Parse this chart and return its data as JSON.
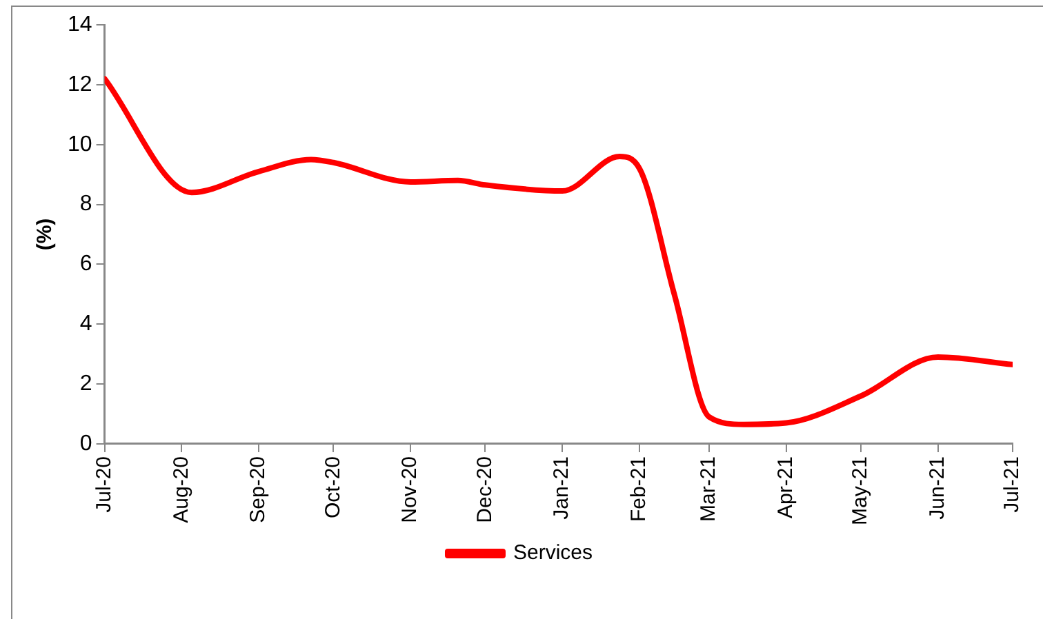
{
  "chart_data": {
    "type": "line",
    "ylabel": "(%)",
    "x": [
      "2020-07-01",
      "2020-08-05",
      "2020-09-01",
      "2020-09-22",
      "2020-10-01",
      "2020-11-01",
      "2020-11-20",
      "2020-12-01",
      "2021-01-01",
      "2021-01-24",
      "2021-02-01",
      "2021-02-15",
      "2021-03-01",
      "2021-03-15",
      "2021-04-01",
      "2021-05-01",
      "2021-06-01",
      "2021-07-01"
    ],
    "series": [
      {
        "name": "Services",
        "color": "#ff0000",
        "values": [
          12.2,
          8.4,
          9.1,
          9.5,
          9.4,
          8.75,
          8.8,
          8.65,
          8.45,
          9.6,
          9.2,
          5.0,
          0.9,
          0.65,
          0.7,
          1.6,
          2.9,
          2.65
        ]
      }
    ],
    "xlim": [
      "2020-07-01",
      "2021-07-01"
    ],
    "xticks": [
      {
        "value": "2020-07-01",
        "label": "Jul-20"
      },
      {
        "value": "2020-08-01",
        "label": "Aug-20"
      },
      {
        "value": "2020-09-01",
        "label": "Sep-20"
      },
      {
        "value": "2020-10-01",
        "label": "Oct-20"
      },
      {
        "value": "2020-11-01",
        "label": "Nov-20"
      },
      {
        "value": "2020-12-01",
        "label": "Dec-20"
      },
      {
        "value": "2021-01-01",
        "label": "Jan-21"
      },
      {
        "value": "2021-02-01",
        "label": "Feb-21"
      },
      {
        "value": "2021-03-01",
        "label": "Mar-21"
      },
      {
        "value": "2021-04-01",
        "label": "Apr-21"
      },
      {
        "value": "2021-05-01",
        "label": "May-21"
      },
      {
        "value": "2021-06-01",
        "label": "Jun-21"
      },
      {
        "value": "2021-07-01",
        "label": "Jul-21"
      }
    ],
    "ylim": [
      0,
      14
    ],
    "yticks": [
      0,
      2,
      4,
      6,
      8,
      10,
      12,
      14
    ],
    "grid": false,
    "legend": "bottom",
    "marker": "none",
    "line_style": "solid"
  }
}
